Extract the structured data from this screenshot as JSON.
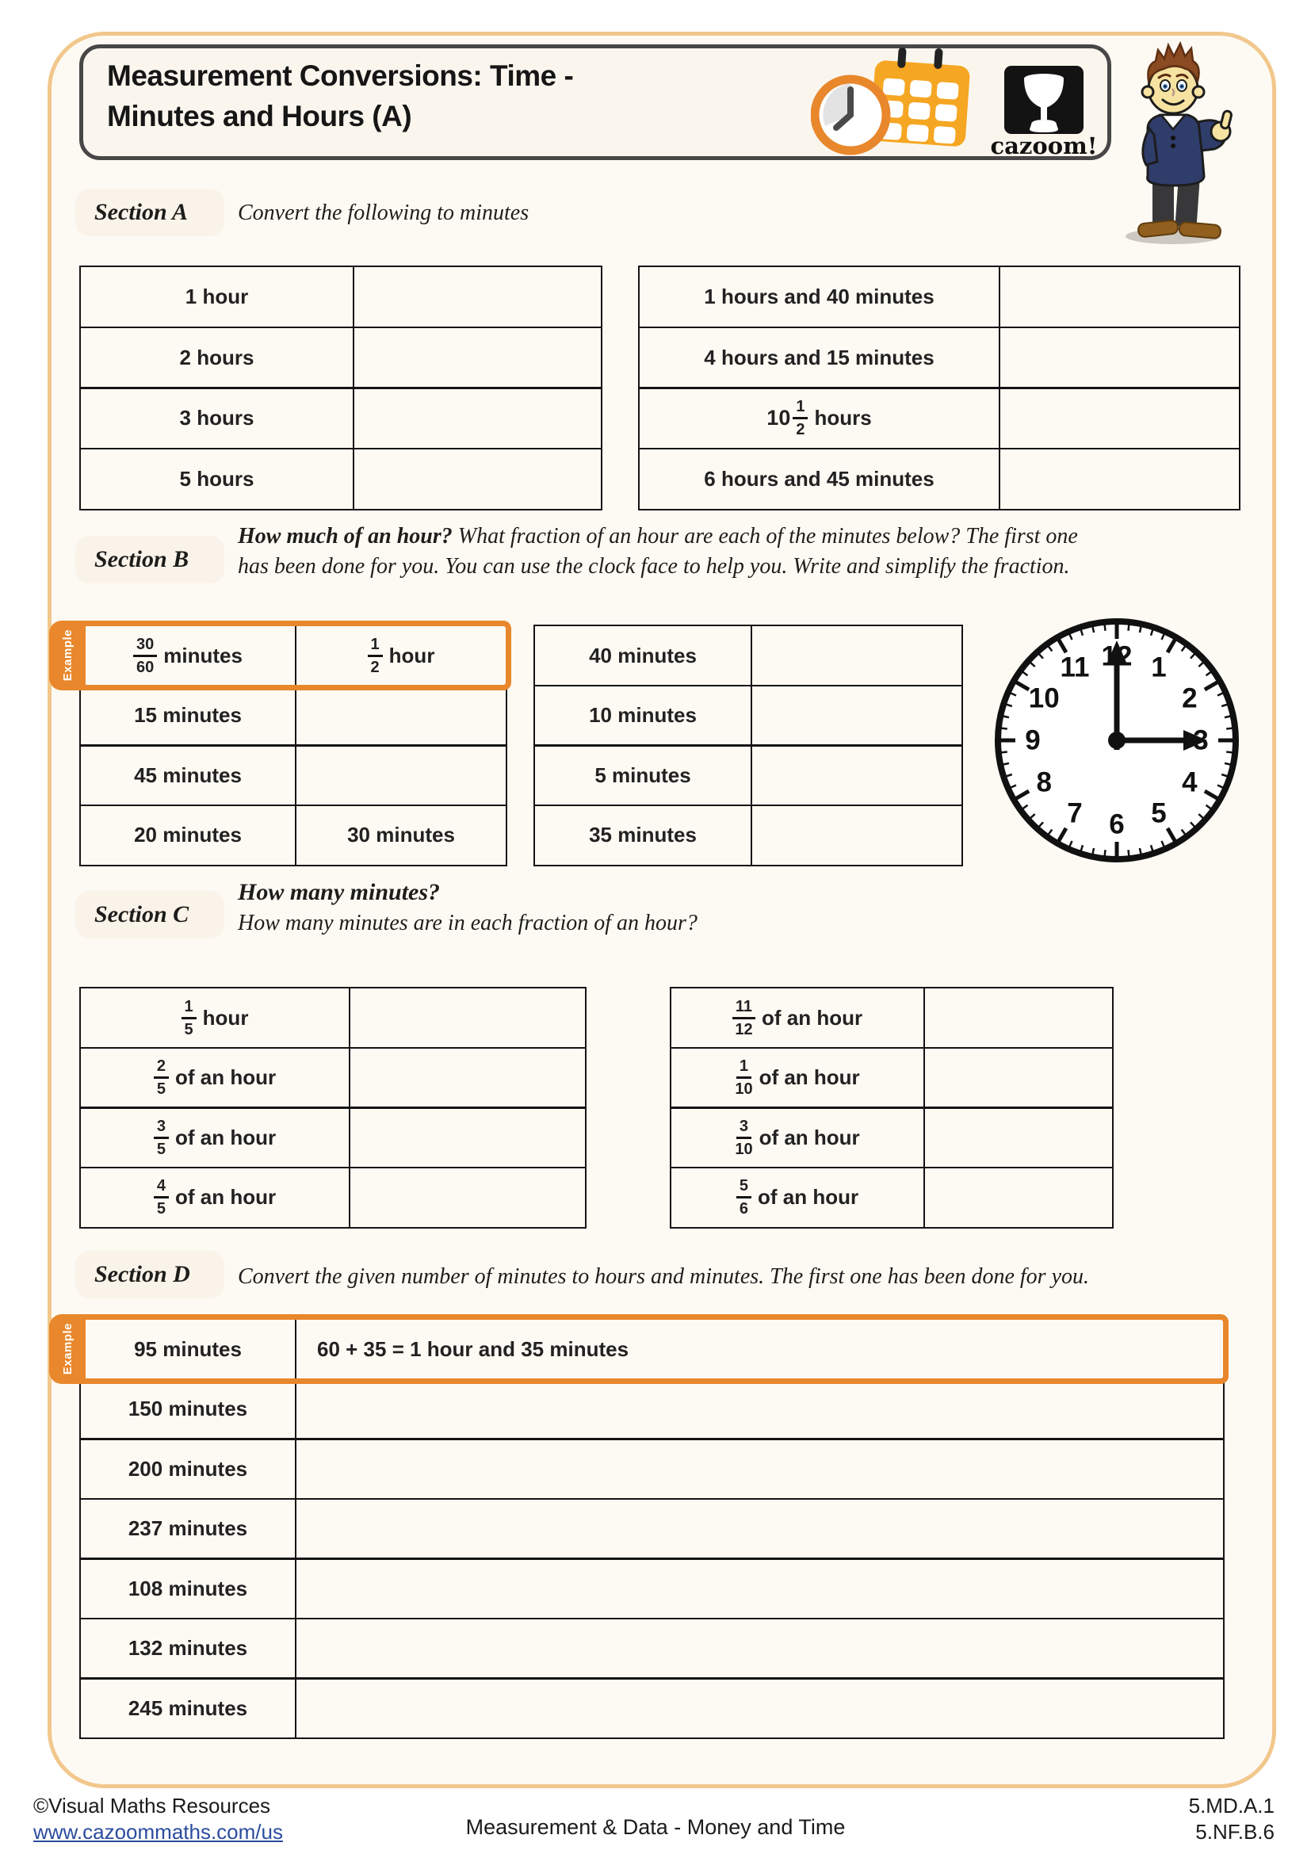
{
  "page": {
    "title_line1": "Measurement Conversions: Time -",
    "title_line2": "Minutes and Hours (A)",
    "logo_text": "cazoom!"
  },
  "example_tab_label": "Example",
  "sections": {
    "a": {
      "label": "Section A",
      "instruction": "Convert the following to minutes"
    },
    "b": {
      "label": "Section B",
      "instr_bold": "How much of an hour?",
      "instr_line1": " What fraction of an hour are each of the minutes below? The first one",
      "instr_line2": "has been done for you. You can use the clock face to help you. Write and simplify the fraction."
    },
    "c": {
      "label": "Section C",
      "heading": "How many minutes?",
      "instruction": "How many minutes are in each fraction of an hour?"
    },
    "d": {
      "label": "Section D",
      "instruction": "Convert the given number of minutes to hours and minutes.  The first one has been done for you."
    }
  },
  "tables": {
    "a_left": [
      {
        "label": {
          "text": "1 hour"
        },
        "answer": {
          "text": ""
        }
      },
      {
        "label": {
          "text": "2 hours"
        },
        "answer": {
          "text": ""
        }
      },
      {
        "label": {
          "text": "3 hours"
        },
        "answer": {
          "text": ""
        }
      },
      {
        "label": {
          "text": "5 hours"
        },
        "answer": {
          "text": ""
        }
      }
    ],
    "a_right": [
      {
        "label": {
          "text": "1 hours and 40 minutes"
        },
        "answer": {
          "text": ""
        }
      },
      {
        "label": {
          "text": "4 hours and 15 minutes"
        },
        "answer": {
          "text": ""
        }
      },
      {
        "label": {
          "whole": "10",
          "frac": [
            "1",
            "2"
          ],
          "suffix": "hours"
        },
        "answer": {
          "text": ""
        }
      },
      {
        "label": {
          "text": "6 hours and 45 minutes"
        },
        "answer": {
          "text": ""
        }
      }
    ],
    "b_left": [
      {
        "example": true,
        "label": {
          "frac": [
            "30",
            "60"
          ],
          "suffix": "minutes"
        },
        "answer": {
          "frac": [
            "1",
            "2"
          ],
          "suffix": "hour"
        }
      },
      {
        "label": {
          "text": "15 minutes"
        },
        "answer": {
          "text": ""
        }
      },
      {
        "label": {
          "text": "45 minutes"
        },
        "answer": {
          "text": ""
        }
      },
      {
        "label": {
          "text": "20 minutes"
        },
        "answer": {
          "text": "30 minutes"
        }
      }
    ],
    "b_right": [
      {
        "label": {
          "text": "40 minutes"
        },
        "answer": {
          "text": ""
        }
      },
      {
        "label": {
          "text": "10 minutes"
        },
        "answer": {
          "text": ""
        }
      },
      {
        "label": {
          "text": "5 minutes"
        },
        "answer": {
          "text": ""
        }
      },
      {
        "label": {
          "text": "35 minutes"
        },
        "answer": {
          "text": ""
        }
      }
    ],
    "c_left": [
      {
        "label": {
          "frac": [
            "1",
            "5"
          ],
          "suffix": "hour"
        },
        "answer": {
          "text": ""
        }
      },
      {
        "label": {
          "frac": [
            "2",
            "5"
          ],
          "suffix": "of an hour"
        },
        "answer": {
          "text": ""
        }
      },
      {
        "label": {
          "frac": [
            "3",
            "5"
          ],
          "suffix": "of an hour"
        },
        "answer": {
          "text": ""
        }
      },
      {
        "label": {
          "frac": [
            "4",
            "5"
          ],
          "suffix": "of an hour"
        },
        "answer": {
          "text": ""
        }
      }
    ],
    "c_right": [
      {
        "label": {
          "frac": [
            "11",
            "12"
          ],
          "suffix": "of an hour"
        },
        "answer": {
          "text": ""
        }
      },
      {
        "label": {
          "frac": [
            "1",
            "10"
          ],
          "suffix": "of an hour"
        },
        "answer": {
          "text": ""
        }
      },
      {
        "label": {
          "frac": [
            "3",
            "10"
          ],
          "suffix": "of an hour"
        },
        "answer": {
          "text": ""
        }
      },
      {
        "label": {
          "frac": [
            "5",
            "6"
          ],
          "suffix": "of an hour"
        },
        "answer": {
          "text": ""
        }
      }
    ],
    "d": [
      {
        "example": true,
        "label": {
          "text": "95 minutes"
        },
        "answer": {
          "text": "60 + 35 = 1 hour and 35 minutes"
        }
      },
      {
        "label": {
          "text": "150 minutes"
        },
        "answer": {
          "text": ""
        }
      },
      {
        "label": {
          "text": "200 minutes"
        },
        "answer": {
          "text": ""
        }
      },
      {
        "label": {
          "text": "237 minutes"
        },
        "answer": {
          "text": ""
        }
      },
      {
        "label": {
          "text": "108 minutes"
        },
        "answer": {
          "text": ""
        }
      },
      {
        "label": {
          "text": "132 minutes"
        },
        "answer": {
          "text": ""
        }
      },
      {
        "label": {
          "text": "245 minutes"
        },
        "answer": {
          "text": ""
        }
      }
    ]
  },
  "clock": {
    "numbers": [
      "12",
      "1",
      "2",
      "3",
      "4",
      "5",
      "6",
      "7",
      "8",
      "9",
      "10",
      "11"
    ],
    "time_shown": "3:00"
  },
  "footer": {
    "copyright": "©Visual Maths Resources",
    "link": "www.cazoommaths.com/us",
    "center": "Measurement & Data - Money and Time",
    "code1": "5.MD.A.1",
    "code2": "5.NF.B.6"
  },
  "colors": {
    "accent_orange": "#E8872B",
    "frame_tan": "#F2C78C",
    "header_border": "#474747",
    "link_blue": "#2B4C9E",
    "calendar_orange": "#F5A623"
  }
}
